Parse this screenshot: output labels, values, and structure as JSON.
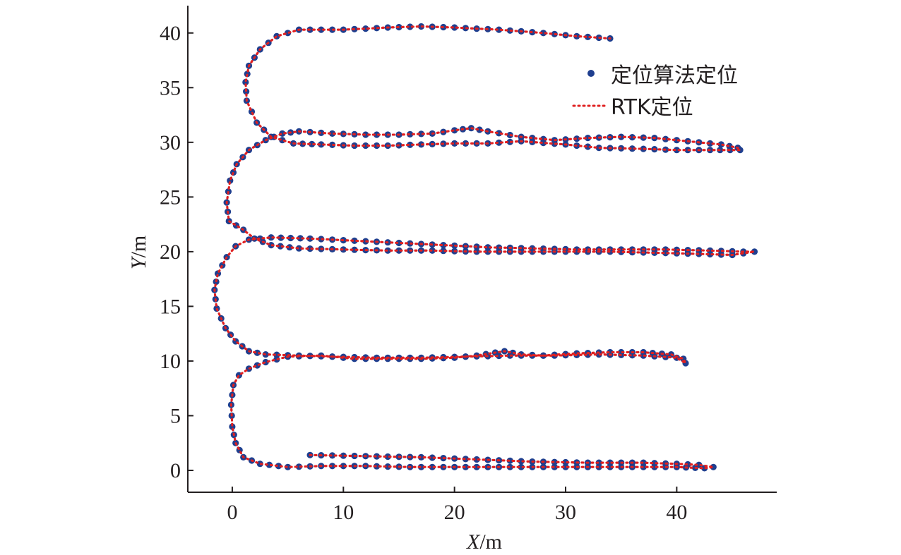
{
  "chart_data": {
    "type": "scatter",
    "title": "",
    "xlabel": {
      "italic": "X",
      "unit": "/m"
    },
    "ylabel": {
      "italic": "Y",
      "unit": "/m"
    },
    "xlim": [
      -4,
      49
    ],
    "ylim": [
      -2,
      42.5
    ],
    "xticks": [
      0,
      10,
      20,
      30,
      40
    ],
    "yticks": [
      0,
      5,
      10,
      15,
      20,
      25,
      30,
      35,
      40
    ],
    "grid": false,
    "legend_position": "top-right",
    "colors": {
      "marker": "#1f3f8f",
      "line": "#e02020",
      "axis": "#231f20"
    },
    "series": [
      {
        "name": "定位算法定位",
        "style": "marker"
      },
      {
        "name": "RTK定位",
        "style": "dotted-line"
      }
    ],
    "trajectory": [
      [
        7,
        1.4
      ],
      [
        12,
        1.3
      ],
      [
        17,
        1.2
      ],
      [
        22,
        1.0
      ],
      [
        27,
        0.8
      ],
      [
        32,
        0.7
      ],
      [
        37,
        0.7
      ],
      [
        40,
        0.6
      ],
      [
        42,
        0.5
      ],
      [
        43.3,
        0.3
      ],
      [
        42.5,
        0.2
      ],
      [
        40,
        0.3
      ],
      [
        36,
        0.3
      ],
      [
        32,
        0.3
      ],
      [
        28,
        0.3
      ],
      [
        24,
        0.3
      ],
      [
        20,
        0.3
      ],
      [
        16,
        0.3
      ],
      [
        12,
        0.4
      ],
      [
        8,
        0.4
      ],
      [
        5,
        0.3
      ],
      [
        2.5,
        0.6
      ],
      [
        1,
        1.2
      ],
      [
        0.3,
        2.5
      ],
      [
        0,
        4
      ],
      [
        -0.1,
        6
      ],
      [
        0.1,
        7.8
      ],
      [
        0.6,
        8.7
      ],
      [
        1.5,
        9.3
      ],
      [
        3,
        9.9
      ],
      [
        5,
        10.4
      ],
      [
        8,
        10.5
      ],
      [
        11,
        10.2
      ],
      [
        14,
        10.2
      ],
      [
        17,
        10.2
      ],
      [
        20,
        10.3
      ],
      [
        22,
        10.5
      ],
      [
        24.5,
        10.9
      ],
      [
        26,
        10.6
      ],
      [
        28,
        10.5
      ],
      [
        31,
        10.7
      ],
      [
        34,
        10.8
      ],
      [
        37,
        10.8
      ],
      [
        39.5,
        10.6
      ],
      [
        40.6,
        10.2
      ],
      [
        40.8,
        9.8
      ],
      [
        40,
        10.3
      ],
      [
        37,
        10.5
      ],
      [
        33,
        10.6
      ],
      [
        29,
        10.5
      ],
      [
        25,
        10.5
      ],
      [
        21,
        10.4
      ],
      [
        17,
        10.3
      ],
      [
        13,
        10.3
      ],
      [
        9,
        10.4
      ],
      [
        6,
        10.5
      ],
      [
        3,
        10.6
      ],
      [
        1.5,
        10.9
      ],
      [
        0.3,
        11.8
      ],
      [
        -0.6,
        13
      ],
      [
        -1.4,
        14.8
      ],
      [
        -1.6,
        16.5
      ],
      [
        -1.3,
        18
      ],
      [
        -0.5,
        19.5
      ],
      [
        0.3,
        20.5
      ],
      [
        1.5,
        21.1
      ],
      [
        3.5,
        21.3
      ],
      [
        7,
        21.2
      ],
      [
        11,
        21.0
      ],
      [
        15,
        20.8
      ],
      [
        19,
        20.6
      ],
      [
        23,
        20.4
      ],
      [
        27,
        20.3
      ],
      [
        31,
        20.2
      ],
      [
        35,
        20.2
      ],
      [
        39,
        20.2
      ],
      [
        43,
        20.1
      ],
      [
        46,
        20.0
      ],
      [
        47,
        20.0
      ],
      [
        45,
        19.7
      ],
      [
        42,
        19.8
      ],
      [
        38,
        19.9
      ],
      [
        34,
        20.0
      ],
      [
        30,
        20.0
      ],
      [
        26,
        20.0
      ],
      [
        22,
        20.0
      ],
      [
        18,
        20.1
      ],
      [
        14,
        20.1
      ],
      [
        10,
        20.2
      ],
      [
        6,
        20.3
      ],
      [
        3.5,
        20.6
      ],
      [
        2,
        21.2
      ],
      [
        1,
        22
      ],
      [
        -0.3,
        22.8
      ],
      [
        -0.5,
        24.5
      ],
      [
        -0.2,
        26.5
      ],
      [
        0.4,
        28
      ],
      [
        1.5,
        29.3
      ],
      [
        3,
        30.2
      ],
      [
        4.5,
        30.8
      ],
      [
        6,
        31.0
      ],
      [
        9,
        30.8
      ],
      [
        12,
        30.7
      ],
      [
        15,
        30.7
      ],
      [
        18,
        30.8
      ],
      [
        20,
        31.1
      ],
      [
        21.5,
        31.3
      ],
      [
        23,
        31.0
      ],
      [
        26,
        30.5
      ],
      [
        29,
        30.2
      ],
      [
        32,
        30.4
      ],
      [
        35,
        30.5
      ],
      [
        38,
        30.4
      ],
      [
        41,
        30.1
      ],
      [
        44,
        29.8
      ],
      [
        45.5,
        29.5
      ],
      [
        45.7,
        29.3
      ],
      [
        43,
        29.3
      ],
      [
        40,
        29.3
      ],
      [
        37,
        29.4
      ],
      [
        33,
        29.5
      ],
      [
        30,
        29.8
      ],
      [
        26,
        30.1
      ],
      [
        23,
        29.9
      ],
      [
        20,
        29.9
      ],
      [
        17,
        29.8
      ],
      [
        14,
        29.7
      ],
      [
        11,
        29.7
      ],
      [
        8,
        29.8
      ],
      [
        5.5,
        29.9
      ],
      [
        3.5,
        30.5
      ],
      [
        2.2,
        31.8
      ],
      [
        1.3,
        33.8
      ],
      [
        1.2,
        35.5
      ],
      [
        1.5,
        37
      ],
      [
        2.5,
        38.5
      ],
      [
        4,
        39.7
      ],
      [
        6,
        40.3
      ],
      [
        10,
        40.3
      ],
      [
        14,
        40.5
      ],
      [
        17,
        40.6
      ],
      [
        20,
        40.5
      ],
      [
        24,
        40.3
      ],
      [
        28,
        40.0
      ],
      [
        31,
        39.7
      ],
      [
        34,
        39.5
      ]
    ]
  }
}
